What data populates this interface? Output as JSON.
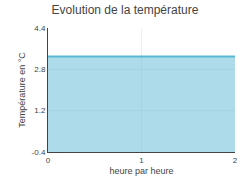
{
  "chart_data": {
    "type": "area",
    "title": "Evolution de la température",
    "xlabel": "heure par heure",
    "ylabel": "Température en °C",
    "x": [
      0,
      2
    ],
    "values": [
      3.3,
      3.3
    ],
    "color": "#5bb8d4",
    "xlim": [
      0,
      2
    ],
    "ylim": [
      -0.4,
      4.4
    ],
    "xticks": [
      0,
      1,
      2
    ],
    "yticks": [
      -0.4,
      1.2,
      2.8,
      4.4
    ],
    "grid": true
  }
}
